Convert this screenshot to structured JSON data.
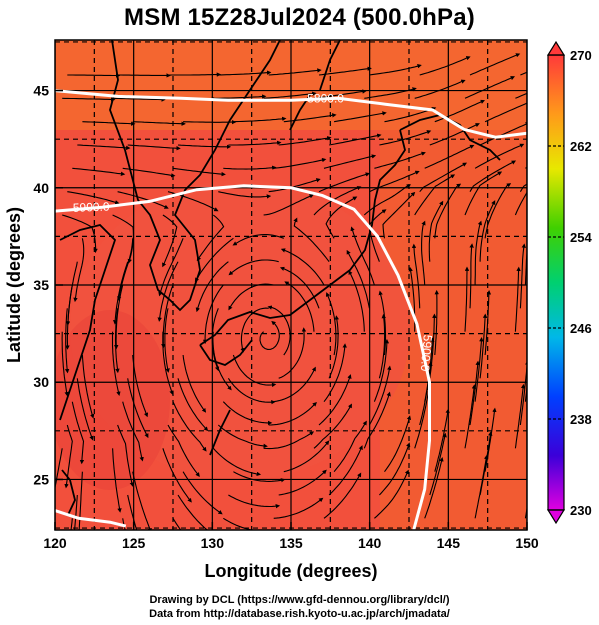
{
  "title": "MSM 15Z28Jul2024 (500.0hPa)",
  "axes": {
    "xlabel": "Longitude (degrees)",
    "ylabel": "Latitude  (degrees)",
    "x_ticks": [
      "120",
      "125",
      "130",
      "135",
      "140",
      "145",
      "150"
    ],
    "y_ticks": [
      "25",
      "30",
      "35",
      "40",
      "45"
    ],
    "xlim": [
      120,
      150
    ],
    "ylim": [
      22.4,
      47.6
    ]
  },
  "colorbar": {
    "ticks": [
      "270",
      "262",
      "254",
      "246",
      "238",
      "230"
    ],
    "min": 230,
    "max": 270
  },
  "contours": [
    {
      "label": "5800.0"
    },
    {
      "label": "5900.0"
    },
    {
      "label": "5900.0"
    }
  ],
  "credits": {
    "line1": "Drawing by DCL (https://www.gfd-dennou.org/library/dcl/)",
    "line2": "Data from http://database.rish.kyoto-u.ac.jp/arch/jmadata/"
  },
  "chart_data": {
    "type": "map",
    "title": "MSM 15Z28Jul2024 (500.0hPa)",
    "xlabel": "Longitude (degrees)",
    "ylabel": "Latitude  (degrees)",
    "xlim": [
      120,
      150
    ],
    "ylim": [
      22.4,
      47.6
    ],
    "colorbar_range": [
      230,
      270
    ],
    "fill_value_approx": 267,
    "geopotential_contours": [
      {
        "label": "5800.0",
        "points": [
          [
            120.0,
            45.0
          ],
          [
            124.0,
            44.7
          ],
          [
            128.0,
            44.6
          ],
          [
            131.0,
            44.5
          ],
          [
            135.0,
            44.5
          ],
          [
            138.0,
            44.6
          ],
          [
            141.0,
            44.3
          ],
          [
            144.0,
            44.0
          ],
          [
            146.0,
            43.0
          ],
          [
            148.0,
            42.6
          ],
          [
            150.0,
            42.8
          ]
        ]
      },
      {
        "label": "5900.0",
        "points": [
          [
            120.0,
            38.8
          ],
          [
            123.0,
            39.0
          ],
          [
            126.0,
            39.3
          ],
          [
            129.0,
            39.9
          ],
          [
            132.0,
            40.1
          ],
          [
            135.0,
            40.0
          ],
          [
            137.0,
            39.6
          ],
          [
            139.0,
            38.9
          ],
          [
            140.5,
            37.5
          ],
          [
            141.8,
            35.5
          ],
          [
            143.0,
            33.0
          ],
          [
            143.8,
            30.0
          ],
          [
            143.8,
            27.0
          ],
          [
            143.5,
            24.5
          ],
          [
            142.8,
            22.4
          ]
        ]
      },
      {
        "label": "5900.0",
        "points": [
          [
            120.0,
            23.4
          ],
          [
            121.5,
            23.0
          ],
          [
            123.5,
            22.8
          ],
          [
            124.5,
            22.6
          ]
        ]
      }
    ]
  }
}
